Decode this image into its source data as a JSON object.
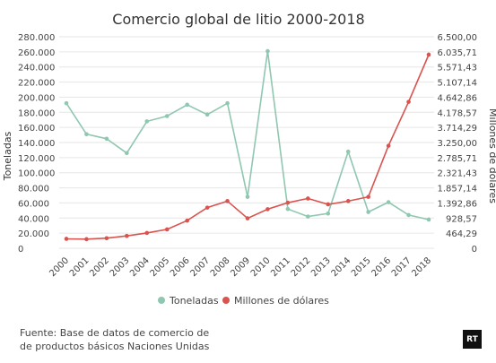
{
  "chart_data": {
    "type": "line",
    "title": "Comercio global de litio 2000-2018",
    "categories": [
      "2000",
      "2001",
      "2002",
      "2003",
      "2004",
      "2005",
      "2006",
      "2007",
      "2008",
      "2009",
      "2010",
      "2011",
      "2012",
      "2013",
      "2014",
      "2015",
      "2016",
      "2017",
      "2018"
    ],
    "y_left": {
      "label": "Toneladas",
      "range": [
        0,
        280000
      ],
      "ticks": [
        "0",
        "20.000",
        "40.000",
        "60.000",
        "80.000",
        "100.000",
        "120.000",
        "140.000",
        "160.000",
        "180.000",
        "200.000",
        "220.000",
        "240.000",
        "260.000",
        "280.000"
      ]
    },
    "y_right": {
      "label": "Millones de dólares",
      "range": [
        0,
        6500
      ],
      "ticks": [
        "0",
        "464,29",
        "928,57",
        "1.392,86",
        "1.857,14",
        "2.321,43",
        "2.785,71",
        "3.250,00",
        "3.714,29",
        "4.178,57",
        "4.642,86",
        "5.107,14",
        "5.571,43",
        "6.035,71",
        "6.500,00"
      ]
    },
    "series": [
      {
        "name": "Toneladas",
        "axis": "left",
        "color": "#8fc7b0",
        "values": [
          192000,
          151000,
          145000,
          126000,
          168000,
          175000,
          190000,
          177000,
          192000,
          68000,
          261000,
          52000,
          42000,
          46000,
          128000,
          48000,
          61000,
          44000,
          38000
        ]
      },
      {
        "name": "Millones de dólares",
        "axis": "right",
        "color": "#d9534f",
        "values": [
          290,
          280,
          310,
          380,
          470,
          580,
          850,
          1250,
          1450,
          920,
          1200,
          1400,
          1530,
          1350,
          1450,
          1580,
          3150,
          4500,
          5950
        ]
      }
    ],
    "legend": "bottom-center",
    "grid": true
  },
  "source": {
    "line1": "Fuente: Base de datos de comercio de",
    "line2": "de productos básicos Naciones Unidas"
  },
  "logo": {
    "text": "RT"
  }
}
